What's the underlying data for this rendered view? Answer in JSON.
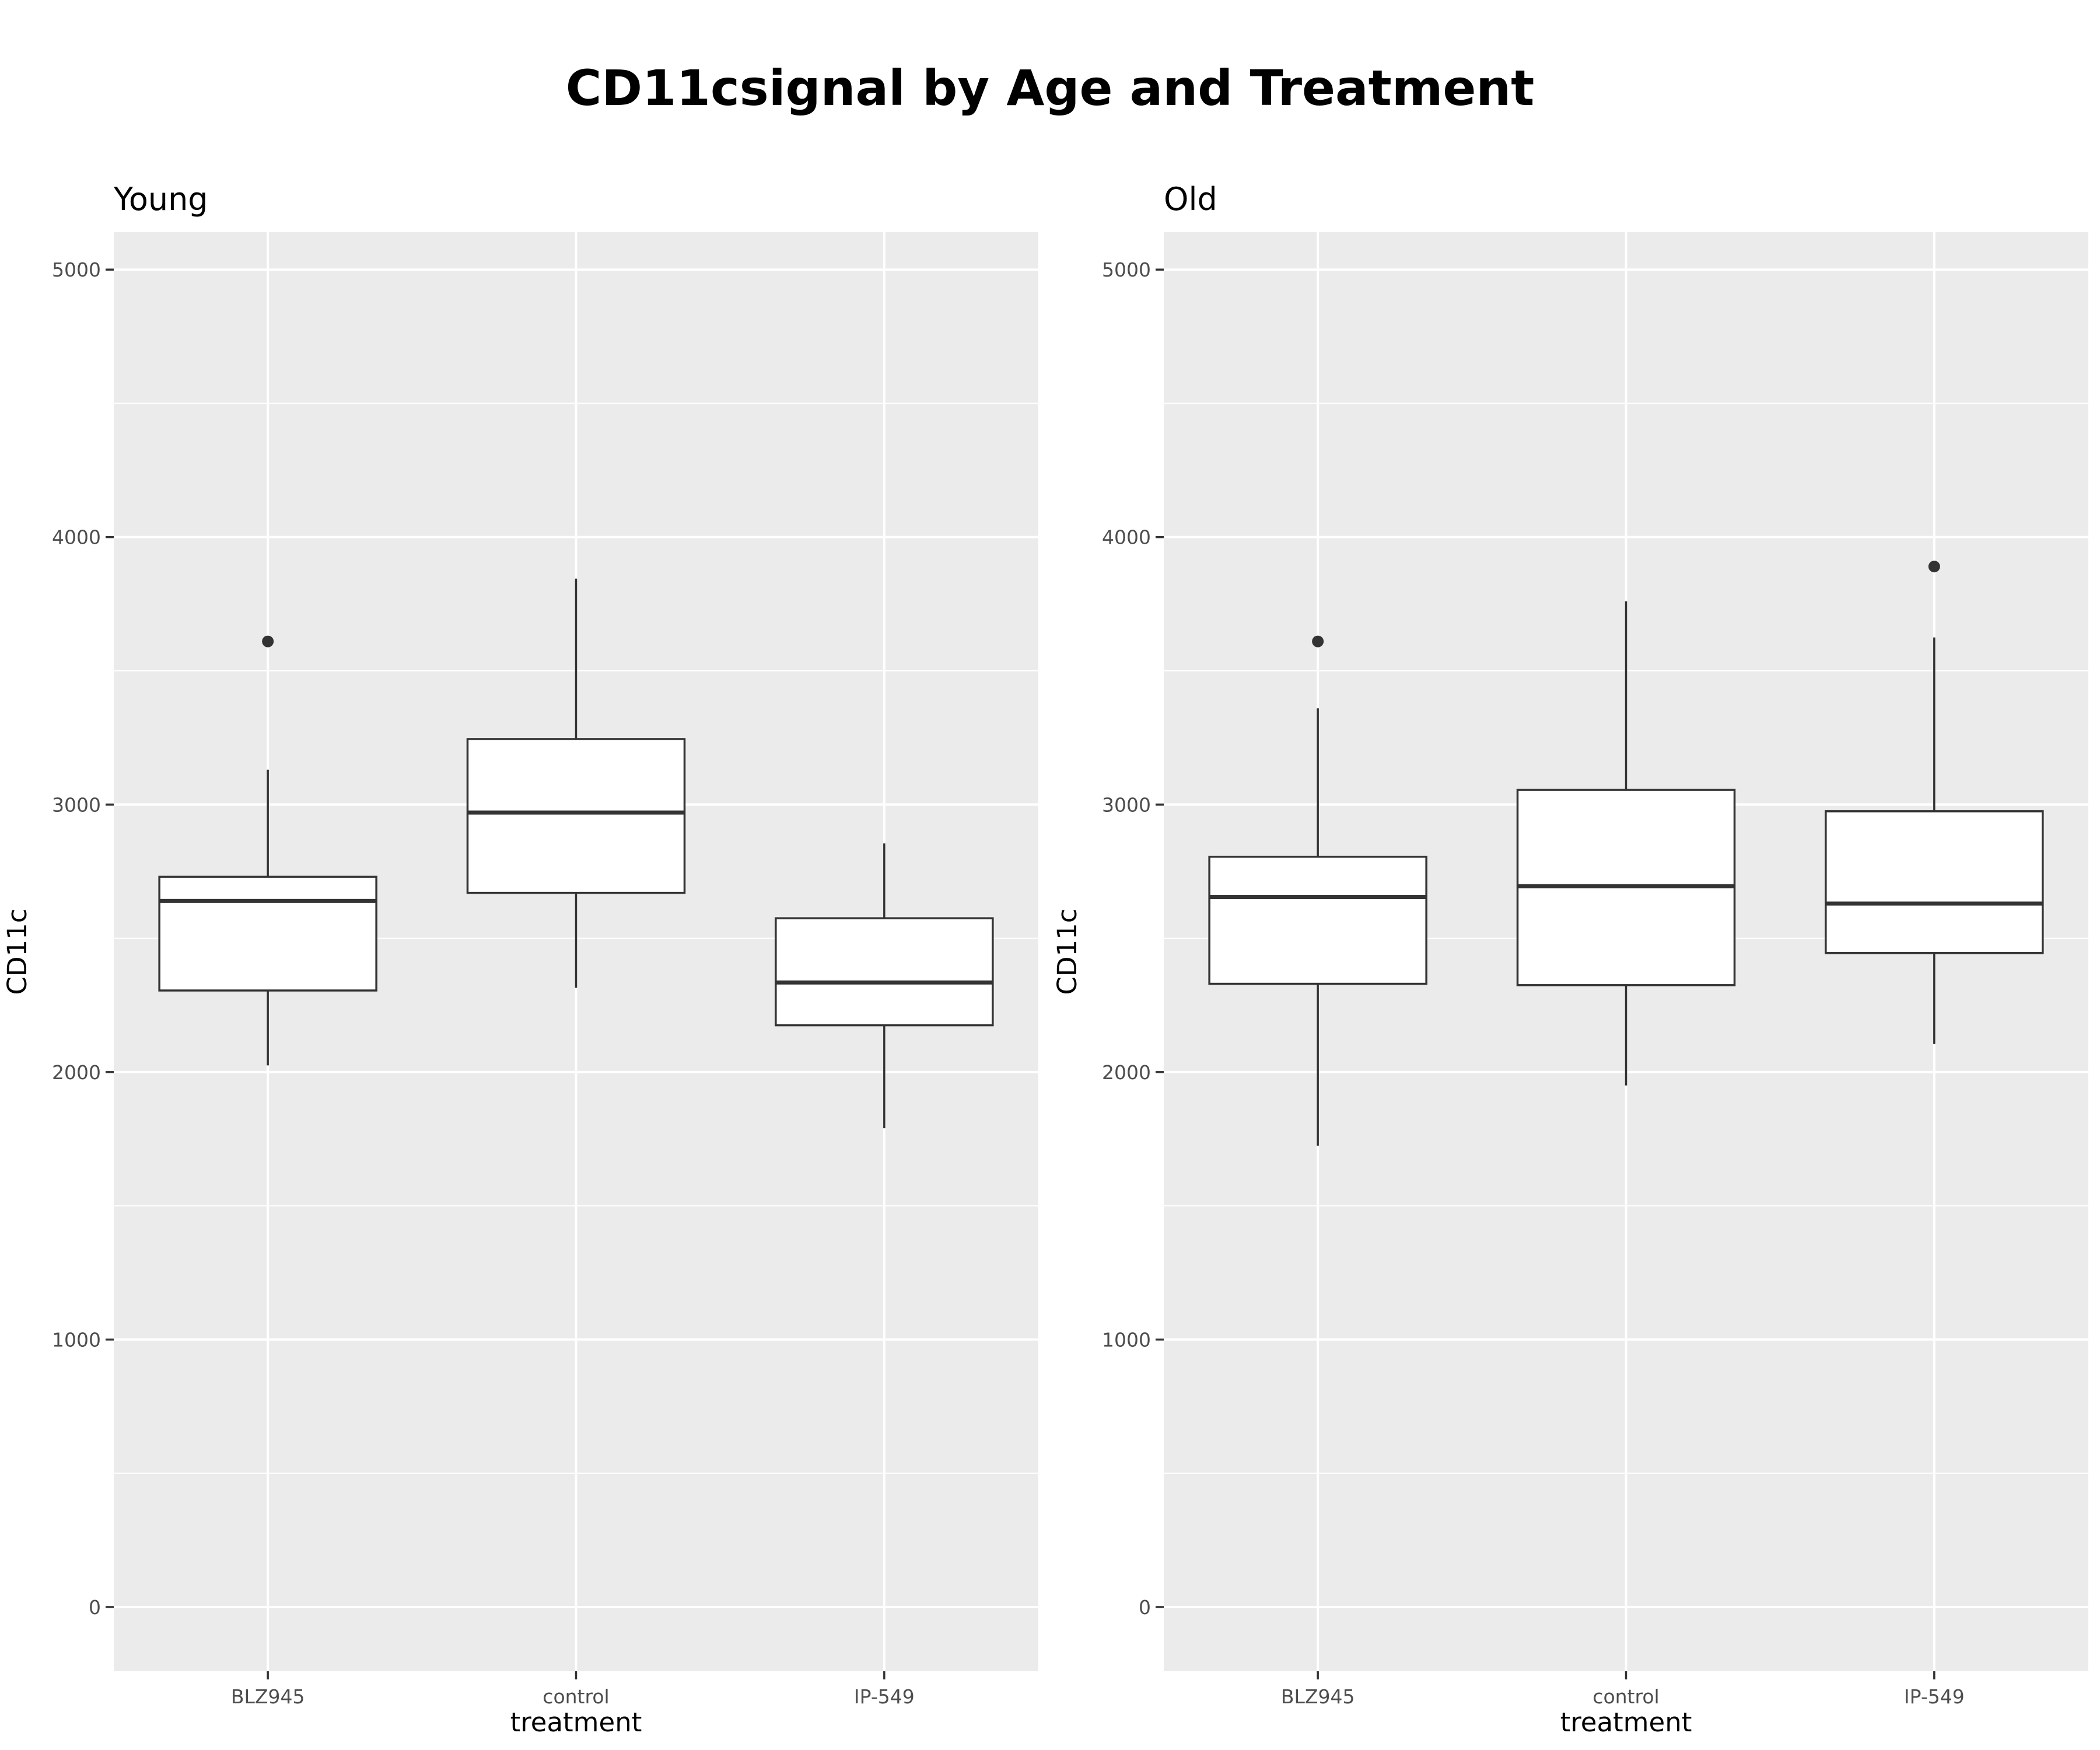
{
  "chart_data": {
    "type": "boxplot",
    "title": "CD11csignal by Age and Treatment",
    "panels": [
      {
        "title": "Young",
        "xlabel": "treatment",
        "ylabel": "CD11c",
        "ylim": [
          -240,
          5140
        ],
        "yticks": [
          0,
          1000,
          2000,
          3000,
          4000,
          5000
        ],
        "categories": [
          "BLZ945",
          "control",
          "IP-549"
        ],
        "boxes": [
          {
            "category": "BLZ945",
            "whisker_low": 2025,
            "q1": 2305,
            "median": 2640,
            "q3": 2730,
            "whisker_high": 3130,
            "outliers": [
              3610
            ]
          },
          {
            "category": "control",
            "whisker_low": 2315,
            "q1": 2670,
            "median": 2970,
            "q3": 3245,
            "whisker_high": 3845,
            "outliers": []
          },
          {
            "category": "IP-549",
            "whisker_low": 1790,
            "q1": 2175,
            "median": 2335,
            "q3": 2575,
            "whisker_high": 2855,
            "outliers": []
          }
        ]
      },
      {
        "title": "Old",
        "xlabel": "treatment",
        "ylabel": "CD11c",
        "ylim": [
          -240,
          5140
        ],
        "yticks": [
          0,
          1000,
          2000,
          3000,
          4000,
          5000
        ],
        "categories": [
          "BLZ945",
          "control",
          "IP-549"
        ],
        "boxes": [
          {
            "category": "BLZ945",
            "whisker_low": 1725,
            "q1": 2330,
            "median": 2655,
            "q3": 2805,
            "whisker_high": 3360,
            "outliers": [
              3610
            ]
          },
          {
            "category": "control",
            "whisker_low": 1950,
            "q1": 2325,
            "median": 2695,
            "q3": 3055,
            "whisker_high": 3760,
            "outliers": []
          },
          {
            "category": "IP-549",
            "whisker_low": 2105,
            "q1": 2445,
            "median": 2630,
            "q3": 2975,
            "whisker_high": 3625,
            "outliers": [
              3890
            ]
          }
        ]
      }
    ],
    "grid": true,
    "legend": "none"
  }
}
